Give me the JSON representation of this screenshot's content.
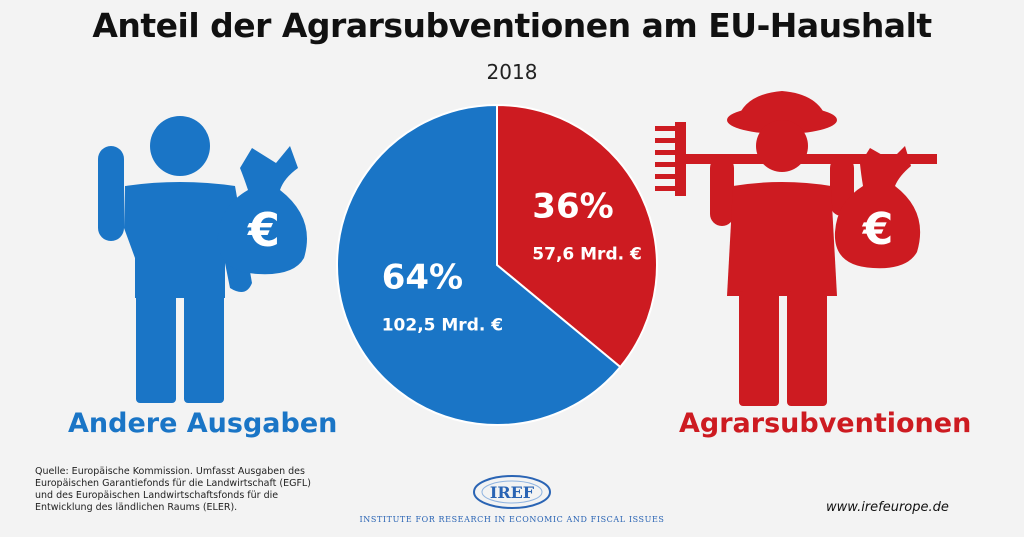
{
  "title": "Anteil der Agrarsubventionen am EU-Haushalt",
  "subtitle": "2018",
  "chart_data": {
    "type": "pie",
    "title": "Anteil der Agrarsubventionen am EU-Haushalt",
    "subtitle": "2018",
    "slices": [
      {
        "name": "Agrarsubventionen",
        "percent": 36,
        "percent_label": "36%",
        "value": 57.6,
        "value_label": "57,6 Mrd. €",
        "color": "#cd1b21"
      },
      {
        "name": "Andere Ausgaben",
        "percent": 64,
        "percent_label": "64%",
        "value": 102.5,
        "value_label": "102,5 Mrd. €",
        "color": "#1a75c6"
      }
    ],
    "legend": [
      "Andere Ausgaben",
      "Agrarsubventionen"
    ]
  },
  "labels": {
    "left": "Andere Ausgaben",
    "right": "Agrarsubventionen"
  },
  "icons": {
    "left_figure": "person-with-money-bag-icon",
    "right_figure": "farmer-with-rake-and-money-bag-icon",
    "currency": "€"
  },
  "footer": {
    "source": "Quelle: Europäische Kommission. Umfasst Ausgaben des Europäischen Garantiefonds für die Landwirtschaft (EGFL) und des Europäischen Landwirtschaftsfonds für die Entwicklung des ländlichen Raums (ELER).",
    "logo_name": "IREF",
    "logo_text": "Institute for Research in Economic and Fiscal issues",
    "website": "www.irefeurope.de"
  },
  "colors": {
    "blue": "#1a75c6",
    "red": "#cd1b21",
    "background": "#f3f3f3"
  }
}
